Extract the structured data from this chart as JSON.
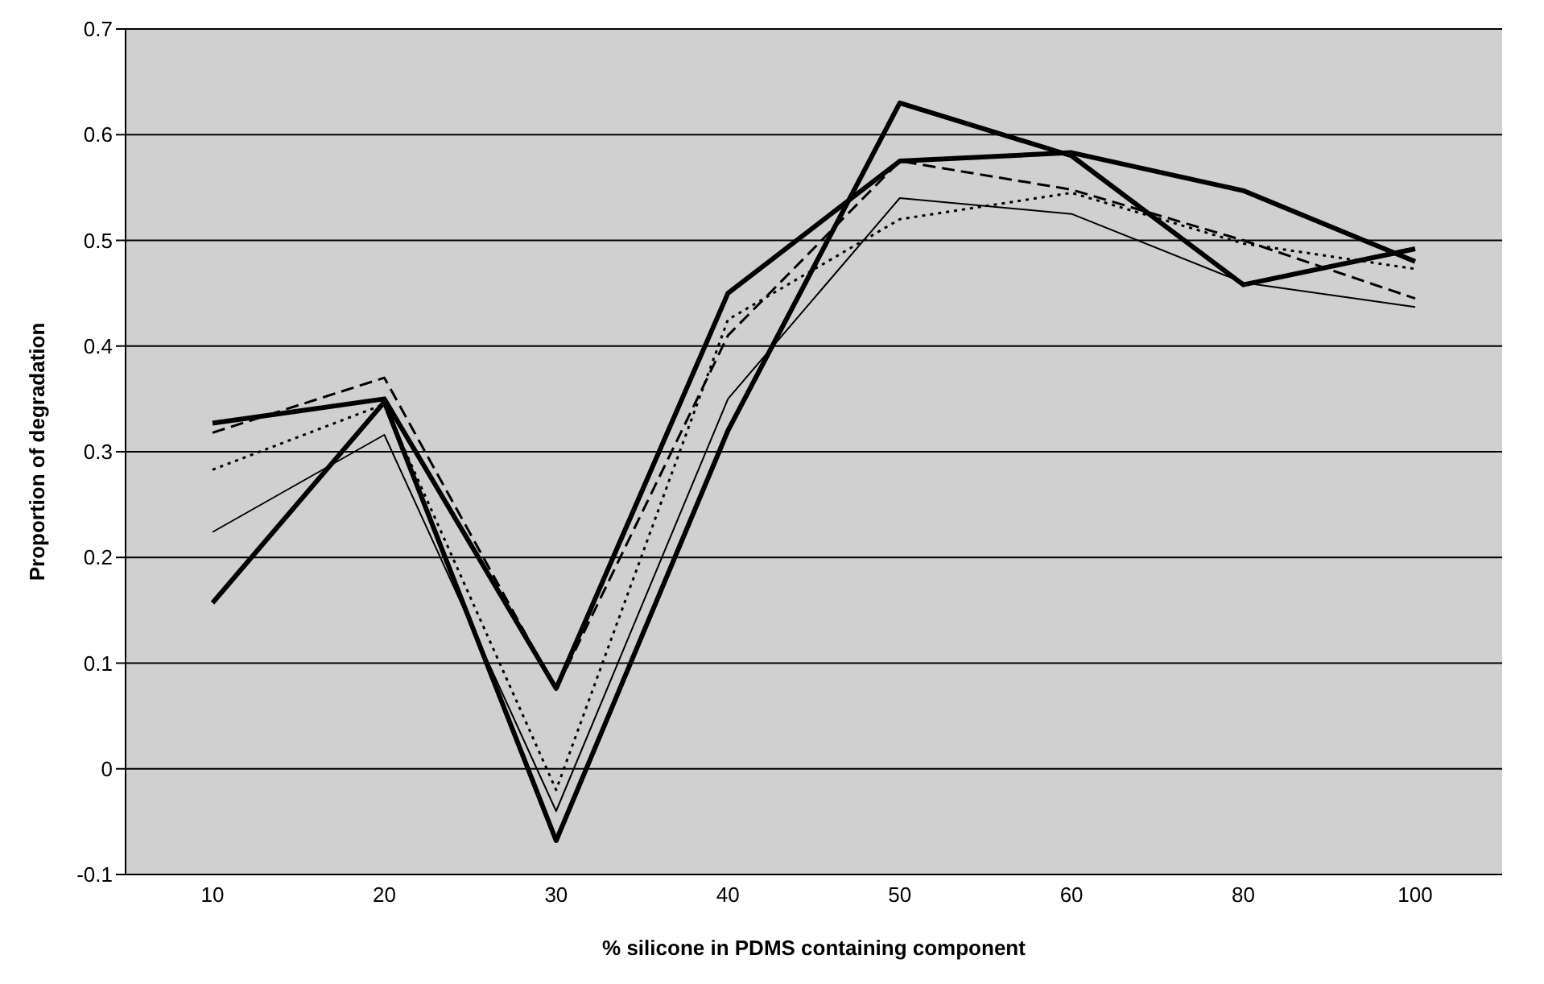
{
  "chart_data": {
    "type": "line",
    "xlabel": "% silicone in PDMS containing component",
    "ylabel": "Proportion of degradation",
    "categories": [
      "10",
      "20",
      "30",
      "40",
      "50",
      "60",
      "80",
      "100"
    ],
    "series": [
      {
        "color": "#000000",
        "line_style": "solid",
        "values": [
          0.327,
          0.35,
          0.076,
          0.45,
          0.575,
          0.583,
          0.547,
          0.48
        ]
      },
      {
        "color": "#000000",
        "line_style": "solid",
        "values": [
          0.157,
          0.347,
          -0.068,
          0.32,
          0.63,
          0.58,
          0.458,
          0.492
        ]
      },
      {
        "color": "#000000",
        "line_style": "dashed",
        "values": [
          0.318,
          0.37,
          0.075,
          0.41,
          0.575,
          0.548,
          0.5,
          0.445
        ]
      },
      {
        "color": "#000000",
        "line_style": "dotted",
        "values": [
          0.283,
          0.345,
          -0.02,
          0.425,
          0.52,
          0.545,
          0.497,
          0.473
        ]
      },
      {
        "color": "#000000",
        "line_style": "solid",
        "values": [
          0.224,
          0.316,
          -0.04,
          0.35,
          0.54,
          0.525,
          0.46,
          0.437
        ]
      }
    ],
    "ylim": [
      -0.1,
      0.7
    ],
    "yticks": [
      -0.1,
      0,
      0.1,
      0.2,
      0.3,
      0.4,
      0.5,
      0.6,
      0.7
    ],
    "grid": "y",
    "marker": "none"
  }
}
